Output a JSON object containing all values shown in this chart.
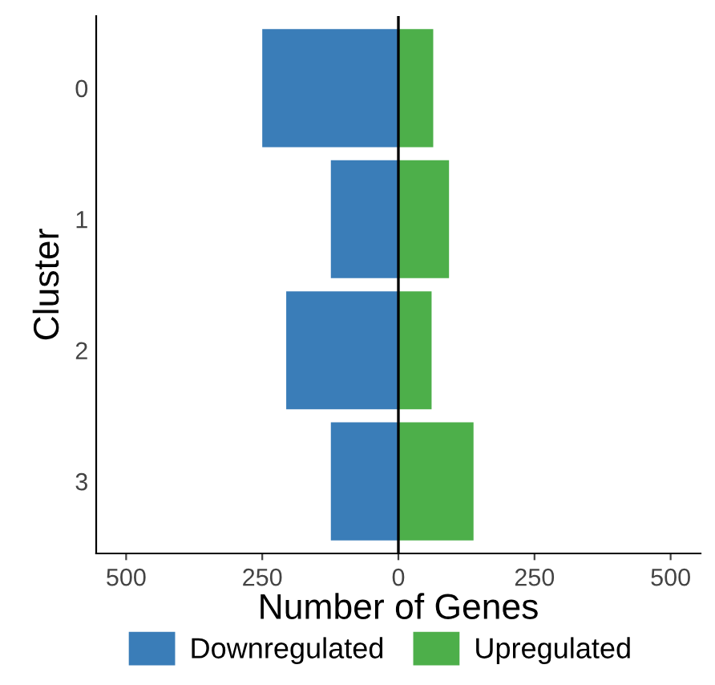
{
  "chart_data": {
    "type": "bar",
    "stacked": true,
    "orientation": "horizontal",
    "xlabel": "Number of Genes",
    "ylabel": "Cluster",
    "categories": [
      "0",
      "1",
      "2",
      "3"
    ],
    "series": [
      {
        "name": "Downregulated",
        "color": "#3a7db8",
        "values": [
          -250,
          -124,
          -206,
          -124
        ]
      },
      {
        "name": "Upregulated",
        "color": "#4daf4a",
        "values": [
          64,
          93,
          61,
          138
        ]
      }
    ],
    "xlim": [
      -555,
      555
    ],
    "xticks": [
      {
        "value": -500,
        "label": "500"
      },
      {
        "value": -250,
        "label": "250"
      },
      0,
      250,
      500
    ],
    "ref_lines": [
      {
        "axis": "x",
        "value": 0,
        "color": "#000000"
      }
    ],
    "grid": false,
    "legend": "bottom"
  }
}
